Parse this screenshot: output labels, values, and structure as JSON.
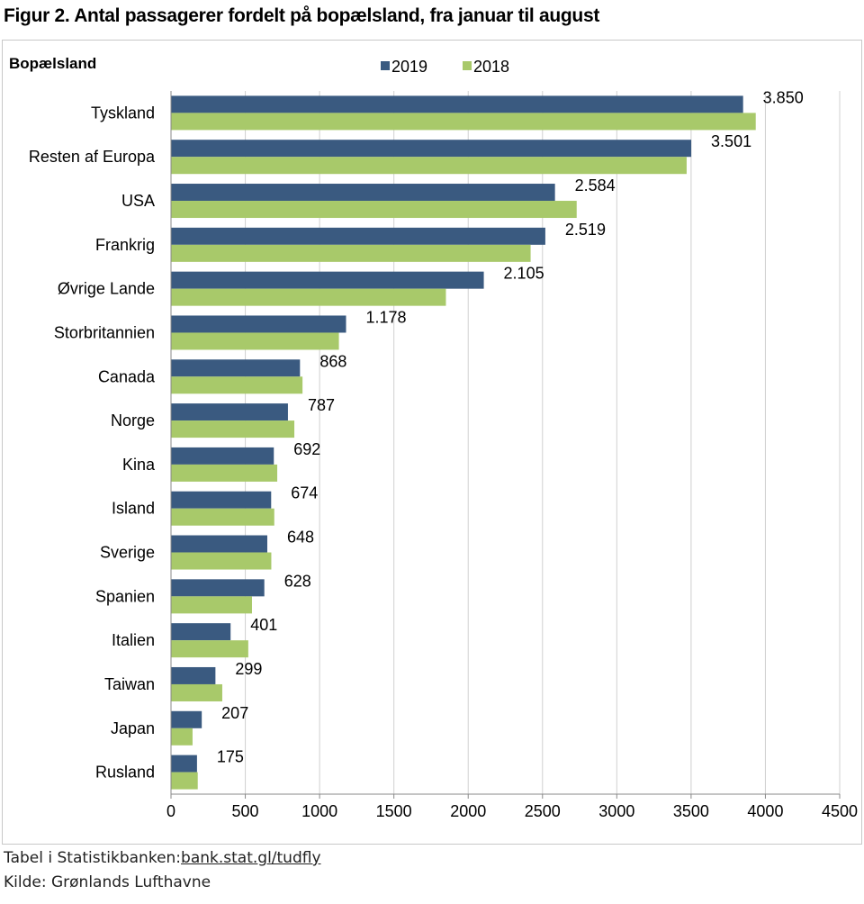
{
  "title": "Figur 2. Antal passagerer fordelt på bopælsland, fra januar til august",
  "footer": {
    "table_prefix": "Tabel i Statistikbanken:",
    "table_link": "bank.stat.gl/tudfly",
    "source": "Kilde: Grønlands Lufthavne"
  },
  "colors": {
    "series_2019": "#3a5a80",
    "series_2018": "#a8c96a",
    "grid": "#d0d0d0"
  },
  "chart_data": {
    "type": "bar",
    "orientation": "horizontal",
    "ylabel": "Bopælsland",
    "xlim": [
      0,
      4500
    ],
    "xticks": [
      0,
      500,
      1000,
      1500,
      2000,
      2500,
      3000,
      3500,
      4000,
      4500
    ],
    "xtick_labels": [
      "0",
      "500",
      "1000",
      "1500",
      "2000",
      "2500",
      "3000",
      "3500",
      "4000",
      "4500"
    ],
    "grid": "vertical",
    "legend": "top",
    "categories": [
      "Tyskland",
      "Resten af Europa",
      "USA",
      "Frankrig",
      "Øvrige Lande",
      "Storbritannien",
      "Canada",
      "Norge",
      "Kina",
      "Island",
      "Sverige",
      "Spanien",
      "Italien",
      "Taiwan",
      "Japan",
      "Rusland"
    ],
    "series": [
      {
        "name": "2019",
        "values": [
          3850,
          3501,
          2584,
          2519,
          2105,
          1178,
          868,
          787,
          692,
          674,
          648,
          628,
          401,
          299,
          207,
          175
        ],
        "data_labels": [
          "3.850",
          "3.501",
          "2.584",
          "2.519",
          "2.105",
          "1.178",
          "868",
          "787",
          "692",
          "674",
          "648",
          "628",
          "401",
          "299",
          "207",
          "175"
        ]
      },
      {
        "name": "2018",
        "values": [
          3935,
          3470,
          2730,
          2420,
          1850,
          1130,
          885,
          830,
          715,
          695,
          675,
          545,
          520,
          345,
          145,
          180
        ]
      }
    ]
  }
}
